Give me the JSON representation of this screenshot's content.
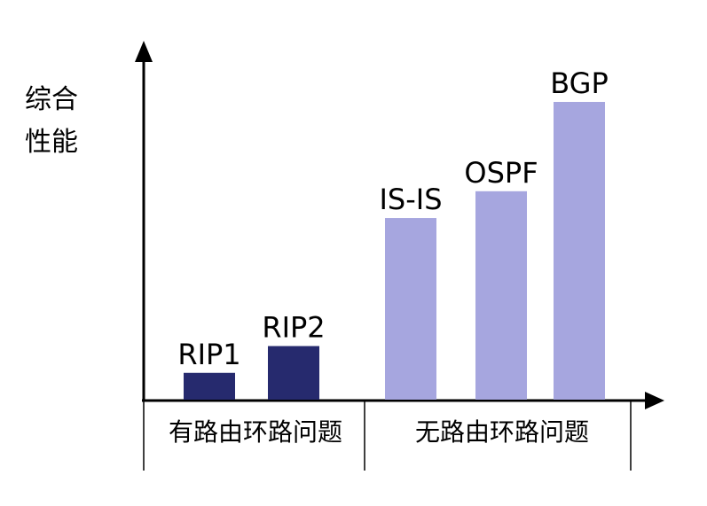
{
  "chart_data": {
    "type": "bar",
    "ylabel_lines": [
      "综合",
      "性能"
    ],
    "xlabel": "",
    "ylim": [
      0,
      100
    ],
    "groups": [
      {
        "label": "有路由环路问题",
        "color": "#262a6e"
      },
      {
        "label": "无路由环路问题",
        "color": "#a6a6df"
      }
    ],
    "bars": [
      {
        "name": "RIP1",
        "value": 9,
        "group": 0
      },
      {
        "name": "RIP2",
        "value": 18,
        "group": 0
      },
      {
        "name": "IS-IS",
        "value": 61,
        "group": 1
      },
      {
        "name": "OSPF",
        "value": 70,
        "group": 1
      },
      {
        "name": "BGP",
        "value": 100,
        "group": 1
      }
    ],
    "grid": false,
    "legend": "none"
  }
}
